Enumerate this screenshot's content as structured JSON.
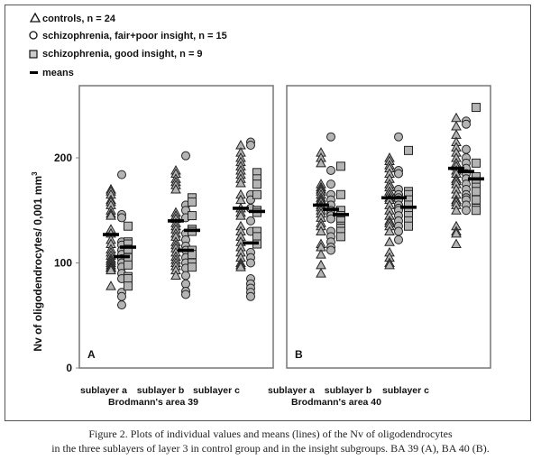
{
  "chart_data": {
    "type": "scatter",
    "ylabel": "Nv of oligodendrocytes/ 0,001 mm3",
    "ylabel_main": "Nv of oligodendrocytes/ 0,001 mm",
    "ylabel_sup": "3",
    "ylim": [
      0,
      270
    ],
    "yticks": [
      "0",
      "100",
      "200"
    ],
    "ytick_values": [
      0,
      100,
      200
    ],
    "legend": {
      "placement": "top-left",
      "entries": [
        {
          "marker": "triangle",
          "label": "controls, n = 24"
        },
        {
          "marker": "circle",
          "label": "schizophrenia, fair+poor insight, n = 15"
        },
        {
          "marker": "square",
          "label": "schizophrenia, good insight, n = 9"
        },
        {
          "marker": "line",
          "label": "means"
        }
      ]
    },
    "colors": {
      "marker_fill": "#b4b4b4",
      "marker_stroke": "#222222",
      "mean": "#000000"
    },
    "panels": [
      {
        "letter": "A",
        "area_label": "Brodmann's area 39",
        "categories": [
          "sublayer a",
          "sublayer b",
          "sublayer c"
        ],
        "series": [
          {
            "name": "controls",
            "values": [
              [
                170,
                168,
                165,
                160,
                158,
                155,
                150,
                147,
                145,
                132,
                128,
                122,
                118,
                113,
                110,
                107,
                104,
                102,
                100,
                98,
                96,
                95,
                93,
                78
              ],
              [
                188,
                185,
                180,
                177,
                174,
                170,
                148,
                145,
                142,
                138,
                135,
                132,
                128,
                125,
                120,
                117,
                114,
                110,
                106,
                103,
                100,
                97,
                93,
                88
              ],
              [
                212,
                205,
                200,
                196,
                192,
                188,
                184,
                180,
                176,
                165,
                160,
                152,
                148,
                145,
                135,
                130,
                125,
                120,
                115,
                110,
                105,
                100,
                98,
                96
              ]
            ],
            "means": [
              127,
              140,
              152
            ]
          },
          {
            "name": "fair+poor insight",
            "values": [
              [
                184,
                146,
                143,
                120,
                117,
                112,
                108,
                104,
                100,
                96,
                90,
                85,
                72,
                68,
                60
              ],
              [
                202,
                155,
                150,
                143,
                128,
                122,
                116,
                112,
                105,
                100,
                95,
                88,
                80,
                73,
                70
              ],
              [
                215,
                212,
                165,
                160,
                152,
                140,
                130,
                110,
                105,
                100,
                85,
                80,
                76,
                72,
                68
              ]
            ],
            "means": [
              106,
              112,
              119
            ]
          },
          {
            "name": "good insight",
            "values": [
              [
                135,
                120,
                118,
                113,
                105,
                98,
                87,
                85,
                78
              ],
              [
                162,
                158,
                145,
                132,
                130,
                112,
                108,
                100,
                96
              ],
              [
                186,
                180,
                175,
                165,
                150,
                148,
                130,
                125,
                118
              ]
            ],
            "means": [
              115,
              131,
              149
            ]
          }
        ]
      },
      {
        "letter": "B",
        "area_label": "Brodmann's area 40",
        "categories": [
          "sublayer a",
          "sublayer b",
          "sublayer c"
        ],
        "series": [
          {
            "name": "controls",
            "values": [
              [
                205,
                200,
                195,
                175,
                172,
                170,
                168,
                165,
                162,
                160,
                158,
                155,
                153,
                150,
                147,
                143,
                138,
                135,
                130,
                118,
                115,
                108,
                98,
                90
              ],
              [
                200,
                197,
                193,
                190,
                185,
                180,
                175,
                172,
                168,
                165,
                162,
                160,
                155,
                150,
                145,
                140,
                138,
                135,
                130,
                120,
                110,
                105,
                100,
                98
              ],
              [
                238,
                230,
                222,
                215,
                210,
                205,
                200,
                195,
                192,
                188,
                185,
                180,
                178,
                175,
                170,
                165,
                160,
                158,
                155,
                150,
                135,
                130,
                128,
                118
              ]
            ],
            "means": [
              155,
              162,
              190
            ]
          },
          {
            "name": "fair+poor insight",
            "values": [
              [
                220,
                188,
                175,
                165,
                160,
                155,
                150,
                147,
                145,
                142,
                130,
                125,
                120,
                115,
                112
              ],
              [
                220,
                188,
                185,
                170,
                165,
                162,
                160,
                155,
                152,
                150,
                145,
                140,
                135,
                130,
                122
              ],
              [
                235,
                232,
                208,
                200,
                195,
                190,
                185,
                180,
                175,
                170,
                165,
                162,
                160,
                155,
                150
              ]
            ],
            "means": [
              151,
              162,
              187
            ]
          },
          {
            "name": "good insight",
            "values": [
              [
                192,
                165,
                150,
                145,
                140,
                135,
                133,
                130,
                125
              ],
              [
                207,
                168,
                165,
                160,
                155,
                150,
                145,
                140,
                135
              ],
              [
                248,
                195,
                182,
                175,
                172,
                168,
                160,
                152,
                150
              ]
            ],
            "means": [
              146,
              153,
              180
            ]
          }
        ]
      }
    ]
  },
  "caption": {
    "line1": "Figure 2. Plots of individual values and means (lines) of the Nv of oligodendrocytes",
    "line2": "in the three sublayers of layer 3 in control group and in the insight subgroups. BA 39 (A), BA 40 (B)."
  }
}
